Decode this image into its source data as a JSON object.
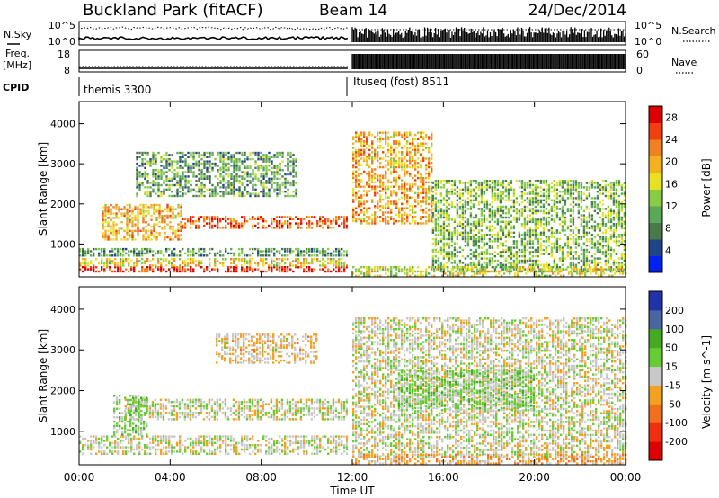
{
  "header": {
    "title": "Buckland Park (fitACF)",
    "beam": "Beam 14",
    "date": "24/Dec/2014"
  },
  "strip_labels": {
    "nsky": "N.Sky",
    "nsearch": "N.Search",
    "freq": "Freq.",
    "mhz": "[MHz]",
    "nave": "Nave",
    "cpid": "CPID",
    "noise_low": "10^0",
    "noise_high": "10^5",
    "freq_low": "8",
    "freq_high": "18",
    "nave_low": "0",
    "nave_high": "60"
  },
  "cpid": {
    "first": "themis 3300",
    "second": "Ituseq (fost) 8511"
  },
  "x_axis": {
    "label": "Time UT",
    "ticks": [
      "00:00",
      "04:00",
      "08:00",
      "12:00",
      "16:00",
      "20:00",
      "00:00"
    ]
  },
  "colors": {
    "power": [
      "#0022ee",
      "#224488",
      "#4a7a4a",
      "#5aa85a",
      "#88cc44",
      "#e8e020",
      "#f4b020",
      "#f08020",
      "#ee4010",
      "#dd0000"
    ],
    "velocity": [
      "#dd0000",
      "#ee3010",
      "#f07020",
      "#f4a020",
      "#c8c8c8",
      "#66cc33",
      "#44aa22",
      "#4a66a0",
      "#2233aa"
    ]
  },
  "chart_data": [
    {
      "type": "heatmap",
      "title": "Power",
      "xlabel": "",
      "ylabel": "Slant Range [km]",
      "xlim": [
        0,
        24
      ],
      "ylim": [
        180,
        4550
      ],
      "yticks": [
        "1000",
        "2000",
        "3000",
        "4000"
      ],
      "colorbar": {
        "label": "Power [dB]",
        "ticks": [
          "4",
          "8",
          "12",
          "16",
          "20",
          "24",
          "28"
        ],
        "range": [
          0,
          30
        ]
      },
      "bands": [
        {
          "t0": 0.0,
          "t1": 11.8,
          "r0": 300,
          "r1": 450,
          "v": 27
        },
        {
          "t0": 0.0,
          "t1": 11.8,
          "r0": 450,
          "r1": 650,
          "v": 17
        },
        {
          "t0": 0.0,
          "t1": 11.8,
          "r0": 700,
          "r1": 900,
          "v": 9
        },
        {
          "t0": 4.5,
          "t1": 11.8,
          "r0": 1400,
          "r1": 1700,
          "v": 24
        },
        {
          "t0": 1.0,
          "t1": 4.5,
          "r0": 1100,
          "r1": 2000,
          "v": 20
        },
        {
          "t0": 2.5,
          "t1": 9.5,
          "r0": 2200,
          "r1": 3300,
          "v": 10
        },
        {
          "t0": 12.0,
          "t1": 15.5,
          "r0": 1500,
          "r1": 3800,
          "v": 20
        },
        {
          "t0": 15.5,
          "t1": 24.0,
          "r0": 300,
          "r1": 2600,
          "v": 12
        },
        {
          "t0": 12.0,
          "t1": 24.0,
          "r0": 200,
          "r1": 450,
          "v": 16
        }
      ]
    },
    {
      "type": "heatmap",
      "title": "Velocity",
      "xlabel": "Time UT",
      "ylabel": "Slant Range [km]",
      "xlim": [
        0,
        24
      ],
      "ylim": [
        180,
        4550
      ],
      "yticks": [
        "1000",
        "2000",
        "3000",
        "4000"
      ],
      "colorbar": {
        "label": "Velocity [m s^-1]",
        "ticks": [
          "200",
          "100",
          "50",
          "15",
          "-15",
          "-50",
          "-100",
          "-200"
        ],
        "range": [
          -250,
          250
        ]
      },
      "bands": [
        {
          "t0": 0.0,
          "t1": 11.8,
          "r0": 450,
          "r1": 900,
          "v": 0
        },
        {
          "t0": 2.0,
          "t1": 11.8,
          "r0": 1300,
          "r1": 1800,
          "v": 0
        },
        {
          "t0": 1.5,
          "t1": 3.0,
          "r0": 900,
          "r1": 1900,
          "v": 40
        },
        {
          "t0": 6.0,
          "t1": 10.5,
          "r0": 2700,
          "r1": 3400,
          "v": -30
        },
        {
          "t0": 12.0,
          "t1": 24.0,
          "r0": 400,
          "r1": 3800,
          "v": 0
        },
        {
          "t0": 14.0,
          "t1": 20.0,
          "r0": 1500,
          "r1": 2500,
          "v": 45
        },
        {
          "t0": 12.0,
          "t1": 24.0,
          "r0": 200,
          "r1": 450,
          "v": -60
        }
      ]
    }
  ]
}
